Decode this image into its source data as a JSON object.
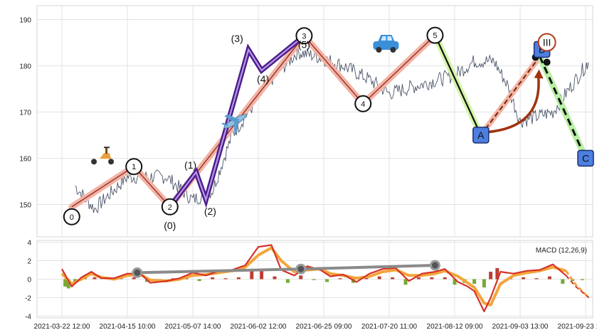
{
  "chart_data": [
    {
      "type": "line",
      "panel": "price",
      "ylim": [
        143,
        193
      ],
      "yticks": [
        150,
        160,
        170,
        180,
        190
      ],
      "grid": true,
      "x_ticks": [
        "2021-03-22 12:00",
        "2021-04-15 10:00",
        "2021-05-07 14:00",
        "2021-06-02 12:00",
        "2021-06-25 09:00",
        "2021-07-20 11:00",
        "2021-08-12 09:00",
        "2021-09-03 13:00",
        "2021-09-23 10:00"
      ],
      "price_series": {
        "anchors": [
          [
            0.2,
            154
          ],
          [
            0.5,
            149
          ],
          [
            1.0,
            156
          ],
          [
            1.6,
            156
          ],
          [
            2.0,
            151
          ],
          [
            2.3,
            153
          ],
          [
            2.6,
            165
          ],
          [
            3.2,
            177
          ],
          [
            3.6,
            183
          ],
          [
            3.9,
            182
          ],
          [
            4.3,
            180
          ],
          [
            4.7,
            177
          ],
          [
            5.0,
            174
          ],
          [
            5.5,
            176
          ],
          [
            6.0,
            178
          ],
          [
            6.3,
            181
          ],
          [
            6.6,
            181
          ],
          [
            6.8,
            176
          ],
          [
            7.0,
            168
          ],
          [
            7.5,
            170
          ],
          [
            7.9,
            178
          ],
          [
            8.0,
            180
          ],
          [
            8.05,
            181
          ]
        ]
      },
      "waves": {
        "impulse": {
          "points": [
            [
              0.15,
              149.5
            ],
            [
              1.1,
              158.2
            ],
            [
              1.65,
              149.5
            ],
            [
              3.7,
              186.5
            ],
            [
              4.6,
              171.8
            ],
            [
              5.7,
              186.6
            ]
          ],
          "labels": [
            "0",
            "1",
            "2",
            "3",
            "4",
            "5"
          ]
        },
        "sub_waves": {
          "points": [
            [
              1.65,
              149.5
            ],
            [
              2.05,
              157
            ],
            [
              2.2,
              151
            ],
            [
              2.85,
              183.5
            ],
            [
              3.05,
              179
            ],
            [
              3.7,
              186.5
            ]
          ],
          "labels": [
            "(0)",
            "(1)",
            "(2)",
            "(3)",
            "(4)",
            "(5)"
          ]
        },
        "correction": {
          "points": [
            [
              5.7,
              186.6
            ],
            [
              6.4,
              165
            ],
            [
              7.3,
              182
            ],
            [
              8.0,
              160
            ]
          ],
          "labels": [
            "A",
            "B",
            "C"
          ],
          "marker": "III"
        }
      },
      "icons": [
        "scooter-icon",
        "airplane-icon",
        "car-icon"
      ]
    },
    {
      "type": "line",
      "panel": "macd",
      "label": "MACD (12,26,9)",
      "ylim": [
        -4.2,
        4.2
      ],
      "yticks": [
        -4,
        -2,
        0,
        2,
        4
      ],
      "macd_line": [
        [
          0.0,
          1.1
        ],
        [
          0.15,
          -0.8
        ],
        [
          0.3,
          0.2
        ],
        [
          0.45,
          0.8
        ],
        [
          0.6,
          0.1
        ],
        [
          0.8,
          0.1
        ],
        [
          1.0,
          0.6
        ],
        [
          1.2,
          0.6
        ],
        [
          1.35,
          -0.4
        ],
        [
          1.6,
          -0.2
        ],
        [
          1.8,
          0.1
        ],
        [
          2.0,
          0.7
        ],
        [
          2.2,
          0.4
        ],
        [
          2.4,
          0.9
        ],
        [
          2.6,
          1.0
        ],
        [
          2.8,
          1.5
        ],
        [
          3.0,
          3.5
        ],
        [
          3.2,
          3.7
        ],
        [
          3.35,
          1.0
        ],
        [
          3.55,
          0.4
        ],
        [
          3.75,
          1.4
        ],
        [
          3.95,
          1.0
        ],
        [
          4.1,
          0.3
        ],
        [
          4.3,
          0.5
        ],
        [
          4.5,
          -0.3
        ],
        [
          4.7,
          0.6
        ],
        [
          4.9,
          1.1
        ],
        [
          5.1,
          1.2
        ],
        [
          5.3,
          -0.2
        ],
        [
          5.5,
          0.6
        ],
        [
          5.7,
          0.8
        ],
        [
          5.85,
          1.1
        ],
        [
          6.05,
          -0.3
        ],
        [
          6.2,
          -0.8
        ],
        [
          6.3,
          -1.3
        ],
        [
          6.45,
          -3.5
        ],
        [
          6.55,
          -2.0
        ],
        [
          6.7,
          0.8
        ],
        [
          6.9,
          0.6
        ],
        [
          7.1,
          0.9
        ],
        [
          7.3,
          1.0
        ],
        [
          7.5,
          1.6
        ],
        [
          7.7,
          0.4
        ],
        [
          7.85,
          -0.8
        ],
        [
          8.05,
          -2.0
        ]
      ],
      "signal_line": [
        [
          0.0,
          0.6
        ],
        [
          0.15,
          -0.5
        ],
        [
          0.3,
          0.0
        ],
        [
          0.45,
          0.6
        ],
        [
          0.6,
          0.2
        ],
        [
          0.8,
          0.0
        ],
        [
          1.0,
          0.4
        ],
        [
          1.2,
          0.5
        ],
        [
          1.35,
          -0.1
        ],
        [
          1.6,
          -0.2
        ],
        [
          1.8,
          0.0
        ],
        [
          2.0,
          0.4
        ],
        [
          2.2,
          0.5
        ],
        [
          2.4,
          0.7
        ],
        [
          2.6,
          0.9
        ],
        [
          2.8,
          1.3
        ],
        [
          3.0,
          2.6
        ],
        [
          3.2,
          3.4
        ],
        [
          3.35,
          2.0
        ],
        [
          3.55,
          0.8
        ],
        [
          3.75,
          1.0
        ],
        [
          3.95,
          1.1
        ],
        [
          4.1,
          0.6
        ],
        [
          4.3,
          0.4
        ],
        [
          4.5,
          0.1
        ],
        [
          4.7,
          0.3
        ],
        [
          4.9,
          0.8
        ],
        [
          5.1,
          1.0
        ],
        [
          5.3,
          0.4
        ],
        [
          5.5,
          0.4
        ],
        [
          5.7,
          0.6
        ],
        [
          5.85,
          0.9
        ],
        [
          6.05,
          0.3
        ],
        [
          6.2,
          -0.4
        ],
        [
          6.3,
          -0.9
        ],
        [
          6.45,
          -2.6
        ],
        [
          6.55,
          -2.8
        ],
        [
          6.7,
          -0.5
        ],
        [
          6.9,
          0.4
        ],
        [
          7.1,
          0.7
        ],
        [
          7.3,
          0.9
        ],
        [
          7.5,
          1.3
        ],
        [
          7.7,
          0.9
        ],
        [
          7.85,
          -0.6
        ],
        [
          8.05,
          -2.0
        ]
      ],
      "histogram": [
        [
          0.05,
          -0.8
        ],
        [
          0.1,
          -1.0
        ],
        [
          0.2,
          -0.3
        ],
        [
          0.35,
          0.3
        ],
        [
          0.5,
          0.2
        ],
        [
          0.7,
          0.1
        ],
        [
          0.9,
          0.2
        ],
        [
          1.1,
          0.2
        ],
        [
          1.3,
          -0.3
        ],
        [
          1.5,
          -0.1
        ],
        [
          1.7,
          0.1
        ],
        [
          1.9,
          0.3
        ],
        [
          2.1,
          -0.2
        ],
        [
          2.3,
          0.2
        ],
        [
          2.5,
          0.1
        ],
        [
          2.7,
          0.2
        ],
        [
          2.9,
          0.9
        ],
        [
          3.05,
          1.0
        ],
        [
          3.25,
          0.3
        ],
        [
          3.45,
          -0.4
        ],
        [
          3.65,
          0.4
        ],
        [
          3.85,
          -0.1
        ],
        [
          4.05,
          -0.3
        ],
        [
          4.25,
          0.1
        ],
        [
          4.45,
          -0.4
        ],
        [
          4.65,
          0.3
        ],
        [
          4.85,
          0.3
        ],
        [
          5.05,
          0.2
        ],
        [
          5.25,
          -0.6
        ],
        [
          5.45,
          0.2
        ],
        [
          5.65,
          0.2
        ],
        [
          5.85,
          0.2
        ],
        [
          6.0,
          -0.6
        ],
        [
          6.15,
          -0.4
        ],
        [
          6.3,
          -0.5
        ],
        [
          6.45,
          -0.9
        ],
        [
          6.55,
          0.8
        ],
        [
          6.65,
          1.2
        ],
        [
          6.85,
          0.2
        ],
        [
          7.05,
          0.2
        ],
        [
          7.25,
          0.1
        ],
        [
          7.45,
          0.3
        ],
        [
          7.65,
          -0.5
        ],
        [
          7.8,
          -0.2
        ],
        [
          7.95,
          -0.1
        ]
      ],
      "divergence_line": {
        "points": [
          [
            1.15,
            0.7
          ],
          [
            3.65,
            1.1
          ],
          [
            5.7,
            1.5
          ]
        ]
      }
    }
  ]
}
